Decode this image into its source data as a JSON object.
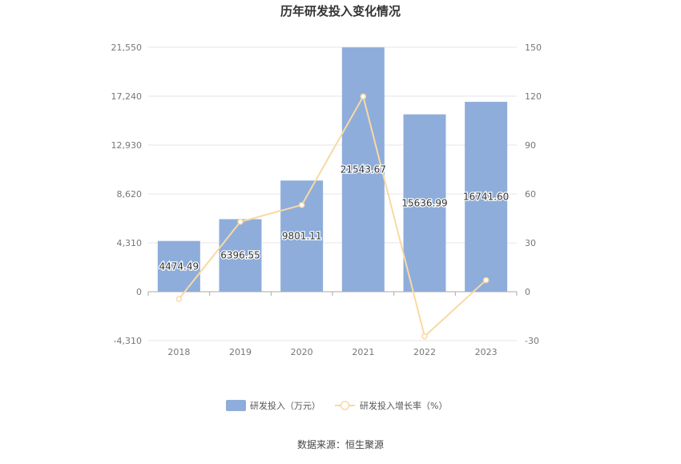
{
  "chart_data": {
    "type": "bar",
    "title": "历年研发投入变化情况",
    "categories": [
      "2018",
      "2019",
      "2020",
      "2021",
      "2022",
      "2023"
    ],
    "series": [
      {
        "name": "研发投入（万元）",
        "type": "bar",
        "axis": "left",
        "values": [
          4474.49,
          6396.55,
          9801.11,
          21543.67,
          15636.99,
          16741.6
        ],
        "value_labels": [
          "4474.49",
          "6396.55",
          "9801.11",
          "21543.67",
          "15636.99",
          "16741.60"
        ],
        "color": "#8eaddb"
      },
      {
        "name": "研发投入增长率（%）",
        "type": "line",
        "axis": "right",
        "values": [
          -4.5,
          42.9,
          53.2,
          119.8,
          -27.4,
          7.1
        ],
        "color": "#f8d9a4"
      }
    ],
    "y_left": {
      "ylim": [
        -4310,
        21550
      ],
      "ticks": [
        -4310,
        0,
        4310,
        8620,
        12930,
        17240,
        21550
      ],
      "tick_labels": [
        "-4,310",
        "0",
        "4,310",
        "8,620",
        "12,930",
        "17,240",
        "21,550"
      ]
    },
    "y_right": {
      "ylim": [
        -30,
        150
      ],
      "ticks": [
        -30,
        0,
        30,
        60,
        90,
        120,
        150
      ],
      "tick_labels": [
        "-30",
        "0",
        "30",
        "60",
        "90",
        "120",
        "150"
      ]
    },
    "grid": true,
    "legend_position": "bottom-center",
    "source": "数据来源：恒生聚源"
  }
}
